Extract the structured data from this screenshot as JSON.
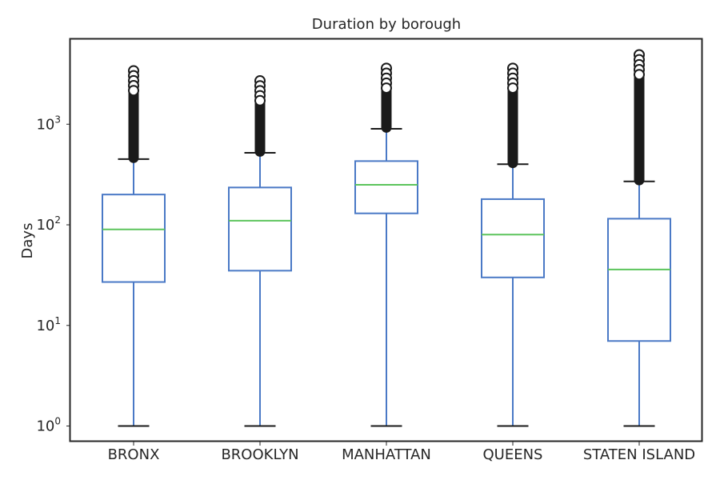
{
  "chart_data": {
    "type": "box",
    "title": "Duration by borough",
    "xlabel": "",
    "ylabel": "Days",
    "yscale": "log",
    "ylim": [
      0.7,
      7000
    ],
    "yticks": [
      {
        "value": 1,
        "base": "10",
        "exp": "0"
      },
      {
        "value": 10,
        "base": "10",
        "exp": "1"
      },
      {
        "value": 100,
        "base": "10",
        "exp": "2"
      },
      {
        "value": 1000,
        "base": "10",
        "exp": "3"
      }
    ],
    "grid": false,
    "categories": [
      "BRONX",
      "BROOKLYN",
      "MANHATTAN",
      "QUEENS",
      "STATEN ISLAND"
    ],
    "boxes": [
      {
        "whisker_low": 1,
        "q1": 27,
        "median": 90,
        "q3": 200,
        "whisker_high": 450,
        "outliers_max": 3400
      },
      {
        "whisker_low": 1,
        "q1": 35,
        "median": 110,
        "q3": 235,
        "whisker_high": 520,
        "outliers_max": 2700
      },
      {
        "whisker_low": 1,
        "q1": 130,
        "median": 250,
        "q3": 430,
        "whisker_high": 900,
        "outliers_max": 3600
      },
      {
        "whisker_low": 1,
        "q1": 30,
        "median": 80,
        "q3": 180,
        "whisker_high": 400,
        "outliers_max": 3600
      },
      {
        "whisker_low": 1,
        "q1": 7,
        "median": 36,
        "q3": 115,
        "whisker_high": 270,
        "outliers_max": 4900
      }
    ],
    "colors": {
      "box": "#4a79c6",
      "median": "#5cc45c",
      "cap": "#1a1a1a",
      "outlier": "#1a1a1a",
      "frame": "#262626"
    }
  }
}
